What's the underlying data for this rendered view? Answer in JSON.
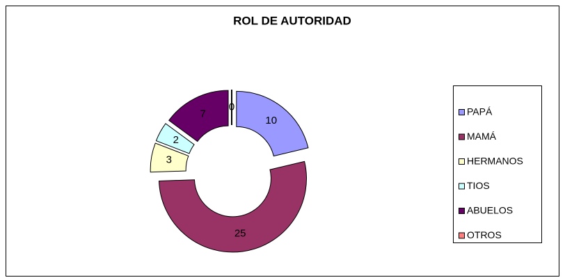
{
  "chart_data": {
    "type": "doughnut",
    "title": "ROL DE AUTORIDAD",
    "categories": [
      "PAPÁ",
      "MAMÁ",
      "HERMANOS",
      "TIOS",
      "ABUELOS",
      "OTROS"
    ],
    "values": [
      10,
      25,
      3,
      2,
      7,
      0
    ],
    "colors": [
      "#9999ff",
      "#993366",
      "#ffffcc",
      "#ccffff",
      "#660066",
      "#ff8080"
    ],
    "legend": "right"
  }
}
